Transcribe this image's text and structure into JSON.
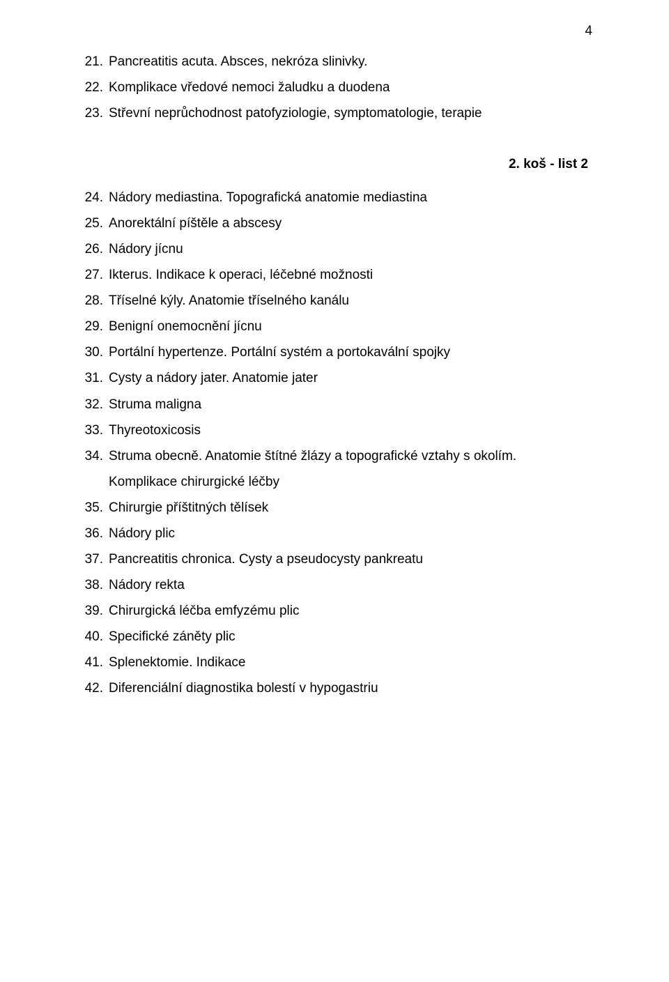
{
  "page_number": "4",
  "section_heading": "2. koš - list 2",
  "font": {
    "family": "Arial",
    "body_size_pt": 14,
    "heading_weight": "bold",
    "color": "#000000",
    "background": "#ffffff"
  },
  "top_items": [
    {
      "num": "21.",
      "text": "Pancreatitis acuta. Absces, nekróza slinivky."
    },
    {
      "num": "22.",
      "text": "Komplikace vředové nemoci žaludku a duodena"
    },
    {
      "num": "23.",
      "text": "Střevní neprůchodnost patofyziologie, symptomatologie, terapie"
    }
  ],
  "bottom_items": [
    {
      "num": "24.",
      "text": "Nádory mediastina. Topografická anatomie mediastina"
    },
    {
      "num": "25.",
      "text": "Anorektální píštěle a abscesy"
    },
    {
      "num": "26.",
      "text": "Nádory jícnu"
    },
    {
      "num": "27.",
      "text": "Ikterus. Indikace k operaci, léčebné možnosti"
    },
    {
      "num": "28.",
      "text": "Tříselné kýly. Anatomie tříselného kanálu"
    },
    {
      "num": "29.",
      "text": "Benigní onemocnění jícnu"
    },
    {
      "num": "30.",
      "text": "Portální hypertenze. Portální systém a portokavální spojky"
    },
    {
      "num": "31.",
      "text": "Cysty a nádory jater. Anatomie jater"
    },
    {
      "num": "32.",
      "text": "Struma maligna"
    },
    {
      "num": "33.",
      "text": "Thyreotoxicosis"
    },
    {
      "num": "34.",
      "text": "Struma obecně. Anatomie štítné žlázy a topografické vztahy s okolím.",
      "cont": "Komplikace chirurgické léčby"
    },
    {
      "num": "35.",
      "text": "Chirurgie příštitných tělísek"
    },
    {
      "num": "36.",
      "text": "Nádory plic"
    },
    {
      "num": "37.",
      "text": "Pancreatitis chronica. Cysty a pseudocysty pankreatu"
    },
    {
      "num": "38.",
      "text": "Nádory rekta"
    },
    {
      "num": "39.",
      "text": "Chirurgická léčba emfyzému plic"
    },
    {
      "num": "40.",
      "text": "Specifické záněty plic"
    },
    {
      "num": "41.",
      "text": "Splenektomie. Indikace"
    },
    {
      "num": "42.",
      "text": "Diferenciální diagnostika bolestí v hypogastriu"
    }
  ]
}
